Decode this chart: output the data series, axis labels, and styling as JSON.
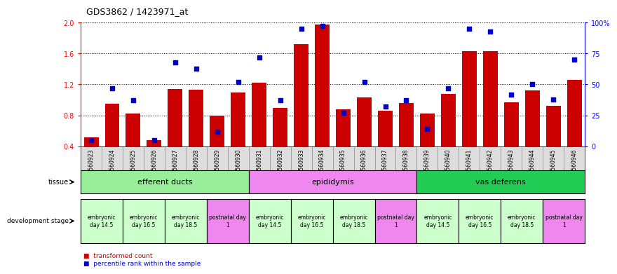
{
  "title": "GDS3862 / 1423971_at",
  "samples": [
    "GSM560923",
    "GSM560924",
    "GSM560925",
    "GSM560926",
    "GSM560927",
    "GSM560928",
    "GSM560929",
    "GSM560930",
    "GSM560931",
    "GSM560932",
    "GSM560933",
    "GSM560934",
    "GSM560935",
    "GSM560936",
    "GSM560937",
    "GSM560938",
    "GSM560939",
    "GSM560940",
    "GSM560941",
    "GSM560942",
    "GSM560943",
    "GSM560944",
    "GSM560945",
    "GSM560946"
  ],
  "transformed_count": [
    0.52,
    0.95,
    0.82,
    0.48,
    1.14,
    1.13,
    0.8,
    1.1,
    1.22,
    0.9,
    1.72,
    1.97,
    0.88,
    1.03,
    0.86,
    0.96,
    0.82,
    1.08,
    1.63,
    1.63,
    0.97,
    1.12,
    0.92,
    1.26
  ],
  "percentile_rank": [
    5,
    47,
    37,
    5,
    68,
    63,
    12,
    52,
    72,
    37,
    95,
    97,
    27,
    52,
    32,
    37,
    14,
    47,
    95,
    93,
    42,
    50,
    38,
    70
  ],
  "bar_color": "#cc0000",
  "dot_color": "#0000cc",
  "ylim_left": [
    0.4,
    2.0
  ],
  "ylim_right": [
    0,
    100
  ],
  "yticks_left": [
    0.4,
    0.8,
    1.2,
    1.6,
    2.0
  ],
  "yticks_right": [
    0,
    25,
    50,
    75,
    100
  ],
  "tissue_groups": [
    {
      "label": "efferent ducts",
      "start": 0,
      "end": 8,
      "color": "#99ee99"
    },
    {
      "label": "epididymis",
      "start": 8,
      "end": 16,
      "color": "#ee88ee"
    },
    {
      "label": "vas deferens",
      "start": 16,
      "end": 24,
      "color": "#22cc55"
    }
  ],
  "dev_stage_groups": [
    {
      "label": "embryonic\nday 14.5",
      "start": 0,
      "end": 2,
      "color": "#ccffcc"
    },
    {
      "label": "embryonic\nday 16.5",
      "start": 2,
      "end": 4,
      "color": "#ccffcc"
    },
    {
      "label": "embryonic\nday 18.5",
      "start": 4,
      "end": 6,
      "color": "#ccffcc"
    },
    {
      "label": "postnatal day\n1",
      "start": 6,
      "end": 8,
      "color": "#ee88ee"
    },
    {
      "label": "embryonic\nday 14.5",
      "start": 8,
      "end": 10,
      "color": "#ccffcc"
    },
    {
      "label": "embryonic\nday 16.5",
      "start": 10,
      "end": 12,
      "color": "#ccffcc"
    },
    {
      "label": "embryonic\nday 18.5",
      "start": 12,
      "end": 14,
      "color": "#ccffcc"
    },
    {
      "label": "postnatal day\n1",
      "start": 14,
      "end": 16,
      "color": "#ee88ee"
    },
    {
      "label": "embryonic\nday 14.5",
      "start": 16,
      "end": 18,
      "color": "#ccffcc"
    },
    {
      "label": "embryonic\nday 16.5",
      "start": 18,
      "end": 20,
      "color": "#ccffcc"
    },
    {
      "label": "embryonic\nday 18.5",
      "start": 20,
      "end": 22,
      "color": "#ccffcc"
    },
    {
      "label": "postnatal day\n1",
      "start": 22,
      "end": 24,
      "color": "#ee88ee"
    }
  ],
  "legend_bar_label": "transformed count",
  "legend_dot_label": "percentile rank within the sample",
  "tissue_label": "tissue",
  "dev_stage_label": "development stage",
  "bg_color": "#ffffff",
  "axis_bg_color": "#ffffff",
  "tick_bg_color": "#dddddd"
}
